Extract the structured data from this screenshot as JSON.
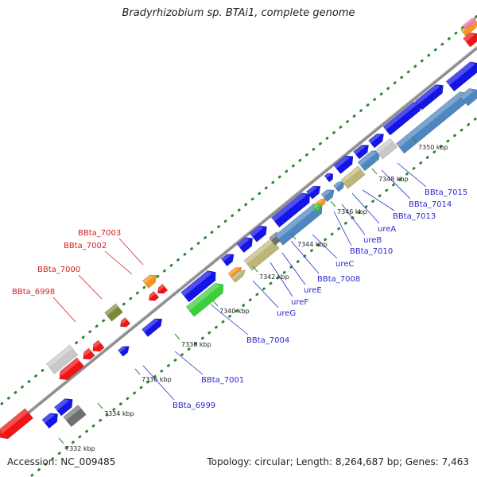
{
  "title": "Bradyrhizobium sp. BTAi1, complete genome",
  "footer": {
    "accession": "Accession: NC_009485",
    "summary": "Topology: circular; Length: 8,264,687 bp; Genes: 7,463"
  },
  "colors": {
    "backbone": "#9a9a9a",
    "tick_dot": "#2a8a2a",
    "leader_fwd": "#2a2ad0",
    "leader_rev": "#d42020"
  },
  "ruler": [
    "7332 kbp",
    "7334 kbp",
    "7336 kbp",
    "7338 kbp",
    "7340 kbp",
    "7342 kbp",
    "7344 kbp",
    "7346 kbp",
    "7348 kbp",
    "7350 kbp"
  ],
  "labels_forward": [
    "BBta_6999",
    "BBta_7001",
    "BBta_7004",
    "ureG",
    "ureF",
    "ureE",
    "BBta_7008",
    "ureC",
    "BBta_7010",
    "ureB",
    "ureA",
    "BBta_7013",
    "BBta_7014",
    "BBta_7015"
  ],
  "labels_reverse": [
    "BBta_6998",
    "BBta_7000",
    "BBta_7002",
    "BBta_7003"
  ]
}
